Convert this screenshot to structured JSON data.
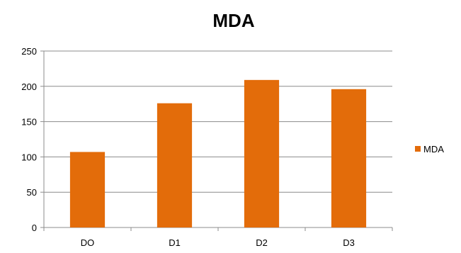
{
  "chart_data": {
    "type": "bar",
    "title": "MDA",
    "categories": [
      "DO",
      "D1",
      "D2",
      "D3"
    ],
    "series": [
      {
        "name": "MDA",
        "values": [
          107,
          176,
          209,
          196
        ],
        "color": "#E36C0A"
      }
    ],
    "yticks": [
      "0",
      "50",
      "100",
      "150",
      "200",
      "250"
    ],
    "ylim": [
      0,
      250
    ],
    "xlabel": "",
    "ylabel": "",
    "grid": true,
    "legend_position": "right"
  }
}
